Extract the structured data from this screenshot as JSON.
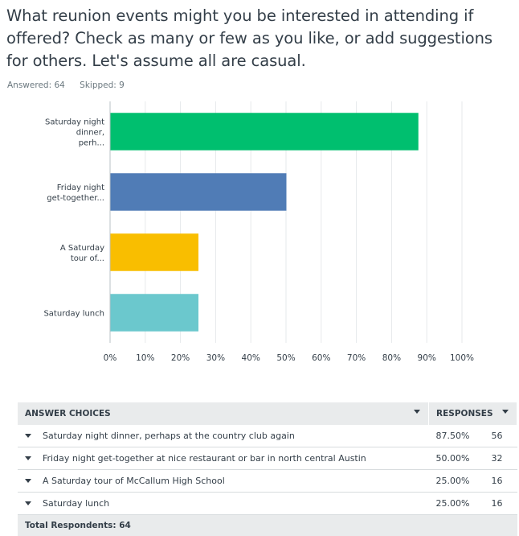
{
  "question": {
    "title": "What reunion events might you be interested in attending if offered? Check as many or few as you like, or add suggestions for others. Let's assume all are casual.",
    "answered": "Answered: 64",
    "skipped": "Skipped: 9"
  },
  "chart_data": {
    "type": "bar",
    "orientation": "horizontal",
    "categories": [
      "Saturday night dinner, perh...",
      "Friday night get-together...",
      "A Saturday tour of...",
      "Saturday lunch"
    ],
    "values": [
      87.5,
      50.0,
      25.0,
      25.0
    ],
    "colors": [
      "#00bf6f",
      "#507cb6",
      "#f9be00",
      "#6bc8cd"
    ],
    "xlim": [
      0,
      100
    ],
    "x_ticks": [
      "0%",
      "10%",
      "20%",
      "30%",
      "40%",
      "50%",
      "60%",
      "70%",
      "80%",
      "90%",
      "100%"
    ],
    "grid": true
  },
  "table": {
    "header_choices": "ANSWER CHOICES",
    "header_responses": "RESPONSES",
    "rows": [
      {
        "choice": "Saturday night dinner, perhaps at the country club again",
        "percent": "87.50%",
        "count": "56"
      },
      {
        "choice": "Friday night get-together at nice restaurant or bar in north central Austin",
        "percent": "50.00%",
        "count": "32"
      },
      {
        "choice": "A Saturday tour of McCallum High School",
        "percent": "25.00%",
        "count": "16"
      },
      {
        "choice": "Saturday lunch",
        "percent": "25.00%",
        "count": "16"
      }
    ],
    "total_label": "Total Respondents: 64"
  },
  "icons": {
    "sort": "chevron-down-icon",
    "expand": "caret-down-icon"
  }
}
